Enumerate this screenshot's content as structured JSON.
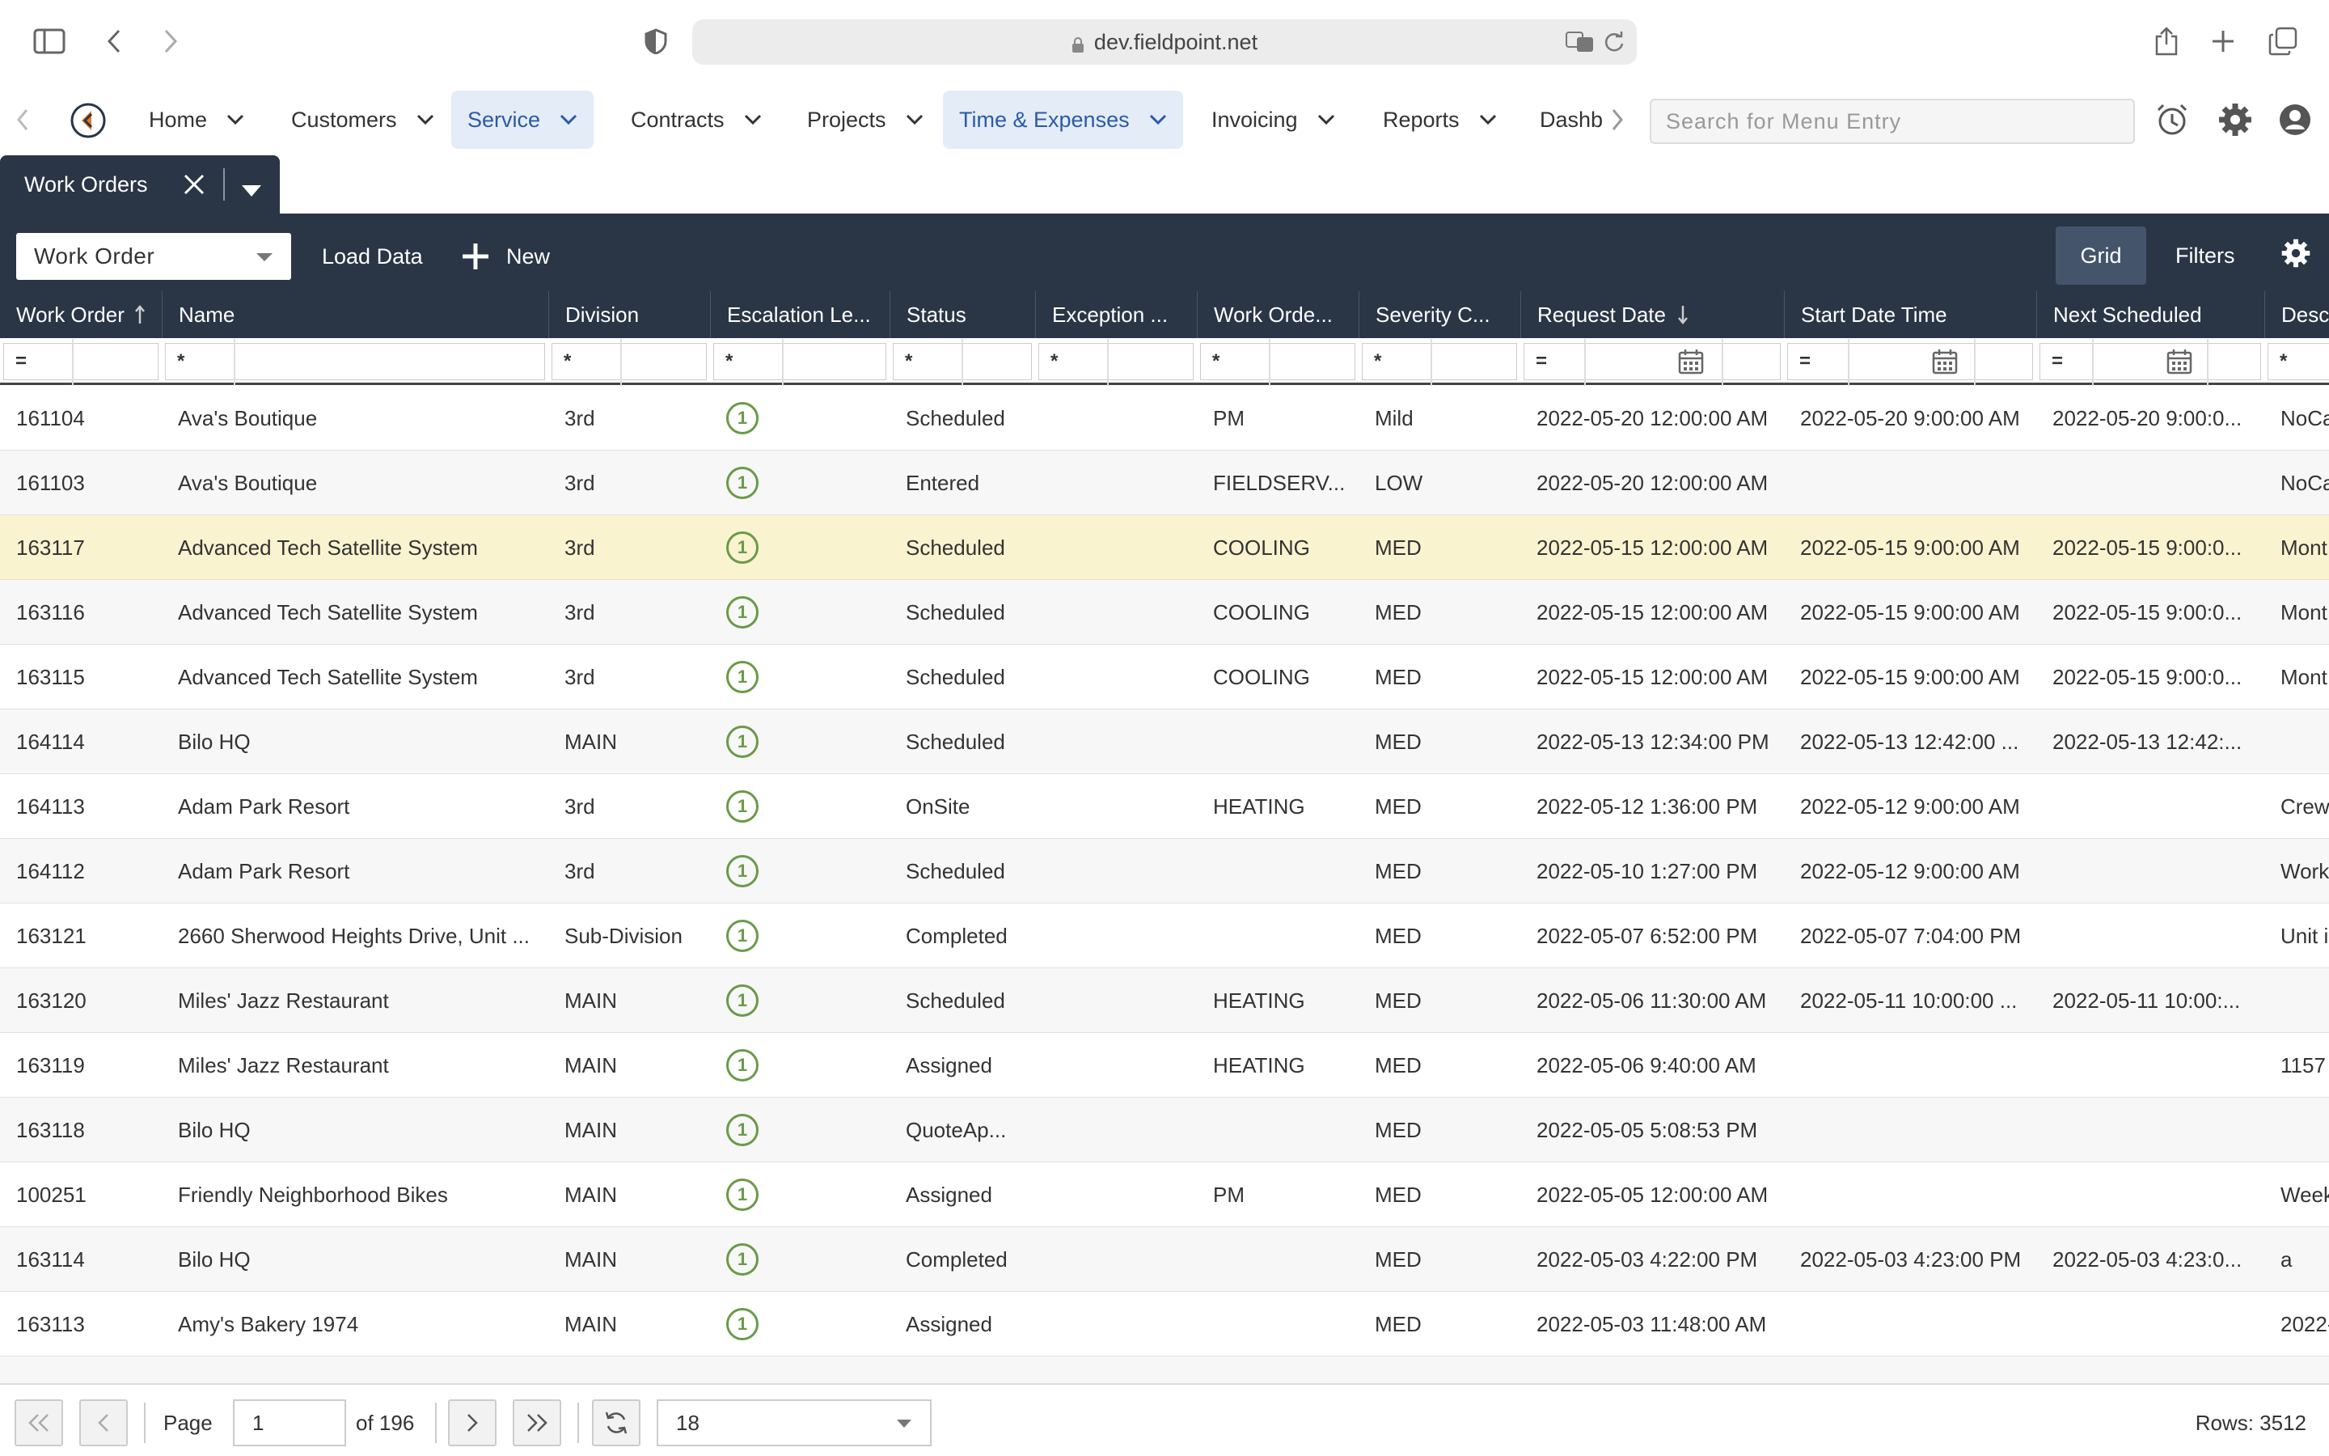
{
  "browser": {
    "url": "dev.fieldpoint.net"
  },
  "nav": {
    "items": [
      {
        "label": "Home",
        "active": false
      },
      {
        "label": "Customers",
        "active": false
      },
      {
        "label": "Service",
        "active": true
      },
      {
        "label": "Contracts",
        "active": false
      },
      {
        "label": "Projects",
        "active": false
      },
      {
        "label": "Time & Expenses",
        "active": true
      },
      {
        "label": "Invoicing",
        "active": false
      },
      {
        "label": "Reports",
        "active": false
      },
      {
        "label": "Dashb",
        "active": false
      }
    ],
    "search_placeholder": "Search for Menu Entry"
  },
  "tabs": [
    {
      "label": "Work Orders"
    }
  ],
  "toolbar": {
    "entity": "Work Order",
    "load_label": "Load Data",
    "new_label": "New",
    "grid_label": "Grid",
    "filters_label": "Filters"
  },
  "grid": {
    "columns": [
      "Work Order",
      "Name",
      "Division",
      "Escalation Le...",
      "Status",
      "Exception ...",
      "Work Orde...",
      "Severity C...",
      "Request Date",
      "Start Date Time",
      "Next Scheduled",
      "Desc"
    ],
    "filters": [
      "=",
      "*",
      "*",
      "*",
      "*",
      "*",
      "*",
      "*",
      "=",
      "=",
      "=",
      "*"
    ],
    "rows": [
      {
        "wo": "161104",
        "name": "Ava's Boutique",
        "division": "3rd",
        "esc": "1",
        "status": "Scheduled",
        "exception": "",
        "type": "PM",
        "severity": "Mild",
        "request": "2022-05-20 12:00:00 AM",
        "start": "2022-05-20 9:00:00 AM",
        "next": "2022-05-20 9:00:0...",
        "desc": "NoCa"
      },
      {
        "wo": "161103",
        "name": "Ava's Boutique",
        "division": "3rd",
        "esc": "1",
        "status": "Entered",
        "exception": "",
        "type": "FIELDSERV...",
        "severity": "LOW",
        "request": "2022-05-20 12:00:00 AM",
        "start": "",
        "next": "",
        "desc": "NoCa"
      },
      {
        "wo": "163117",
        "name": "Advanced Tech Satellite System",
        "division": "3rd",
        "esc": "1",
        "status": "Scheduled",
        "exception": "",
        "type": "COOLING",
        "severity": "MED",
        "request": "2022-05-15 12:00:00 AM",
        "start": "2022-05-15 9:00:00 AM",
        "next": "2022-05-15 9:00:0...",
        "desc": "Mont"
      },
      {
        "wo": "163116",
        "name": "Advanced Tech Satellite System",
        "division": "3rd",
        "esc": "1",
        "status": "Scheduled",
        "exception": "",
        "type": "COOLING",
        "severity": "MED",
        "request": "2022-05-15 12:00:00 AM",
        "start": "2022-05-15 9:00:00 AM",
        "next": "2022-05-15 9:00:0...",
        "desc": "Mont"
      },
      {
        "wo": "163115",
        "name": "Advanced Tech Satellite System",
        "division": "3rd",
        "esc": "1",
        "status": "Scheduled",
        "exception": "",
        "type": "COOLING",
        "severity": "MED",
        "request": "2022-05-15 12:00:00 AM",
        "start": "2022-05-15 9:00:00 AM",
        "next": "2022-05-15 9:00:0...",
        "desc": "Mont"
      },
      {
        "wo": "164114",
        "name": "Bilo HQ",
        "division": "MAIN",
        "esc": "1",
        "status": "Scheduled",
        "exception": "",
        "type": "",
        "severity": "MED",
        "request": "2022-05-13 12:34:00 PM",
        "start": "2022-05-13 12:42:00 ...",
        "next": "2022-05-13 12:42:...",
        "desc": ""
      },
      {
        "wo": "164113",
        "name": "Adam Park Resort",
        "division": "3rd",
        "esc": "1",
        "status": "OnSite",
        "exception": "",
        "type": "HEATING",
        "severity": "MED",
        "request": "2022-05-12 1:36:00 PM",
        "start": "2022-05-12 9:00:00 AM",
        "next": "",
        "desc": "Crew"
      },
      {
        "wo": "164112",
        "name": "Adam Park Resort",
        "division": "3rd",
        "esc": "1",
        "status": "Scheduled",
        "exception": "",
        "type": "",
        "severity": "MED",
        "request": "2022-05-10 1:27:00 PM",
        "start": "2022-05-12 9:00:00 AM",
        "next": "",
        "desc": "Work"
      },
      {
        "wo": "163121",
        "name": "2660 Sherwood Heights Drive, Unit ...",
        "division": "Sub-Division",
        "esc": "1",
        "status": "Completed",
        "exception": "",
        "type": "",
        "severity": "MED",
        "request": "2022-05-07 6:52:00 PM",
        "start": "2022-05-07 7:04:00 PM",
        "next": "",
        "desc": "Unit i"
      },
      {
        "wo": "163120",
        "name": "Miles' Jazz Restaurant",
        "division": "MAIN",
        "esc": "1",
        "status": "Scheduled",
        "exception": "",
        "type": "HEATING",
        "severity": "MED",
        "request": "2022-05-06 11:30:00 AM",
        "start": "2022-05-11 10:00:00 ...",
        "next": "2022-05-11 10:00:...",
        "desc": ""
      },
      {
        "wo": "163119",
        "name": "Miles' Jazz Restaurant",
        "division": "MAIN",
        "esc": "1",
        "status": "Assigned",
        "exception": "",
        "type": "HEATING",
        "severity": "MED",
        "request": "2022-05-06 9:40:00 AM",
        "start": "",
        "next": "",
        "desc": "1157"
      },
      {
        "wo": "163118",
        "name": "Bilo HQ",
        "division": "MAIN",
        "esc": "1",
        "status": "QuoteAp...",
        "exception": "",
        "type": "",
        "severity": "MED",
        "request": "2022-05-05 5:08:53 PM",
        "start": "",
        "next": "",
        "desc": ""
      },
      {
        "wo": "100251",
        "name": "Friendly Neighborhood Bikes",
        "division": "MAIN",
        "esc": "1",
        "status": "Assigned",
        "exception": "",
        "type": "PM",
        "severity": "MED",
        "request": "2022-05-05 12:00:00 AM",
        "start": "",
        "next": "",
        "desc": "Week"
      },
      {
        "wo": "163114",
        "name": "Bilo HQ",
        "division": "MAIN",
        "esc": "1",
        "status": "Completed",
        "exception": "",
        "type": "",
        "severity": "MED",
        "request": "2022-05-03 4:22:00 PM",
        "start": "2022-05-03 4:23:00 PM",
        "next": "2022-05-03 4:23:0...",
        "desc": "a"
      },
      {
        "wo": "163113",
        "name": "Amy's Bakery 1974",
        "division": "MAIN",
        "esc": "1",
        "status": "Assigned",
        "exception": "",
        "type": "",
        "severity": "MED",
        "request": "2022-05-03 11:48:00 AM",
        "start": "",
        "next": "",
        "desc": "2022-"
      }
    ],
    "selected_index": 2
  },
  "footer": {
    "page_label": "Page",
    "page_value": "1",
    "of_label": "of 196",
    "page_size": "18",
    "rows_label": "Rows: 3512"
  }
}
